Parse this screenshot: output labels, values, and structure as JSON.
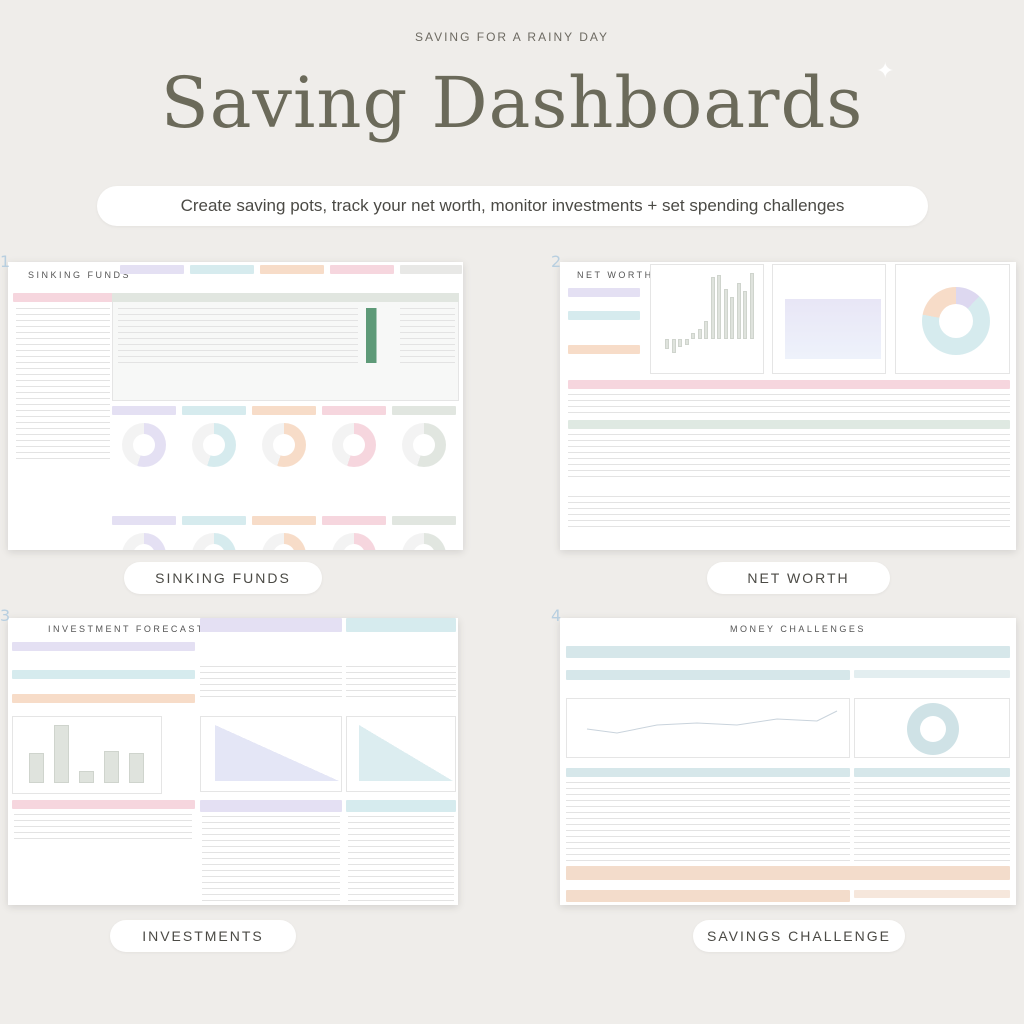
{
  "header": {
    "kicker": "SAVING FOR A RAINY DAY",
    "title": "Saving Dashboards",
    "subtitle": "Create saving pots, track your net worth, monitor investments + set spending challenges"
  },
  "panels": [
    {
      "number": "1",
      "title": "SINKING FUNDS",
      "label": "SINKING FUNDS"
    },
    {
      "number": "2",
      "title": "NET WORTH",
      "label": "NET WORTH"
    },
    {
      "number": "3",
      "title": "INVESTMENT FORECAST",
      "label": "INVESTMENTS"
    },
    {
      "number": "4",
      "title": "MONEY CHALLENGES",
      "label": "SAVINGS CHALLENGE"
    }
  ],
  "colors": {
    "lavender": "#e4e0f3",
    "teal": "#d6ebee",
    "peach": "#f7dcc8",
    "pink": "#f6d6de",
    "sage": "#e1e6e0",
    "green": "#5e9a78",
    "background": "#efedea"
  }
}
